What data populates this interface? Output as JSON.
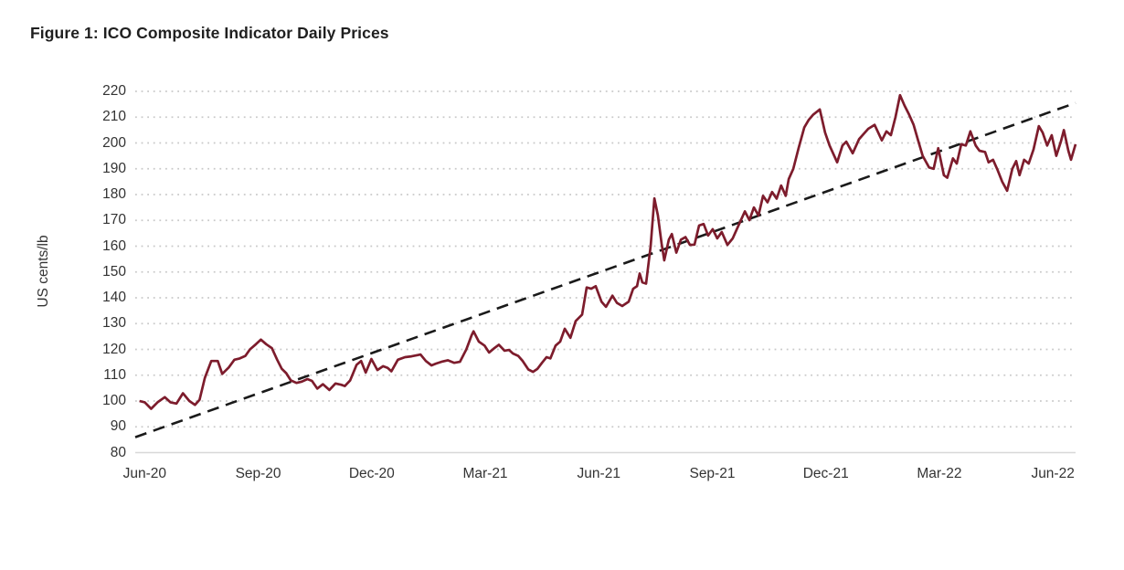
{
  "figure": {
    "title": "Figure 1: ICO Composite Indicator Daily Prices"
  },
  "chart_data": {
    "type": "line",
    "title": "Figure 1: ICO Composite Indicator Daily Prices",
    "xlabel": "",
    "ylabel": "US cents/lb",
    "ylim": [
      80,
      220
    ],
    "y_ticks": [
      80,
      90,
      100,
      110,
      120,
      130,
      140,
      150,
      160,
      170,
      180,
      190,
      200,
      210,
      220
    ],
    "xlim_months": [
      -0.25,
      24.6
    ],
    "x_ticks": {
      "values_months": [
        0,
        3,
        6,
        9,
        12,
        15,
        18,
        21,
        24
      ],
      "labels": [
        "Jun-20",
        "Sep-20",
        "Dec-20",
        "Mar-21",
        "Jun-21",
        "Sep-21",
        "Dec-21",
        "Mar-22",
        "Jun-22"
      ]
    },
    "grid": "horizontal-dotted",
    "legend_position": "none",
    "colors": {
      "price_line": "#7D1C2C",
      "trend_line": "#1A1A1A",
      "gridline": "#C9C9C9",
      "axis_line": "#D8D8D8",
      "text": "#333333",
      "title_text": "#1F1F1F"
    },
    "series": [
      {
        "name": "ICO composite indicator daily price",
        "style": "solid",
        "x_unit": "months since Jun-2020",
        "points": [
          [
            -0.14,
            100
          ],
          [
            0,
            99.5
          ],
          [
            0.17,
            97
          ],
          [
            0.34,
            99.5
          ],
          [
            0.53,
            101.5
          ],
          [
            0.68,
            99.5
          ],
          [
            0.84,
            99
          ],
          [
            1.01,
            103
          ],
          [
            1.18,
            100
          ],
          [
            1.33,
            98.5
          ],
          [
            1.45,
            100.5
          ],
          [
            1.59,
            109
          ],
          [
            1.76,
            115.5
          ],
          [
            1.93,
            115.5
          ],
          [
            2.05,
            110.5
          ],
          [
            2.22,
            113
          ],
          [
            2.37,
            116
          ],
          [
            2.51,
            116.5
          ],
          [
            2.66,
            117.5
          ],
          [
            2.78,
            120
          ],
          [
            2.94,
            122
          ],
          [
            3.07,
            123.8
          ],
          [
            3.21,
            122
          ],
          [
            3.36,
            120.5
          ],
          [
            3.5,
            116
          ],
          [
            3.62,
            112.5
          ],
          [
            3.74,
            110.8
          ],
          [
            3.86,
            108
          ],
          [
            4.01,
            107
          ],
          [
            4.15,
            107.5
          ],
          [
            4.3,
            108.5
          ],
          [
            4.42,
            107.8
          ],
          [
            4.56,
            104.8
          ],
          [
            4.71,
            106.5
          ],
          [
            4.88,
            104.3
          ],
          [
            5.04,
            106.8
          ],
          [
            5.19,
            106.3
          ],
          [
            5.29,
            105.8
          ],
          [
            5.43,
            108
          ],
          [
            5.6,
            114
          ],
          [
            5.72,
            115.5
          ],
          [
            5.84,
            111
          ],
          [
            5.99,
            116.3
          ],
          [
            6.15,
            112
          ],
          [
            6.3,
            113.5
          ],
          [
            6.42,
            112.8
          ],
          [
            6.52,
            111.5
          ],
          [
            6.69,
            116
          ],
          [
            6.88,
            117
          ],
          [
            7.05,
            117.3
          ],
          [
            7.22,
            117.8
          ],
          [
            7.29,
            118
          ],
          [
            7.43,
            115.5
          ],
          [
            7.58,
            113.8
          ],
          [
            7.7,
            114.5
          ],
          [
            7.84,
            115.2
          ],
          [
            8.01,
            115.8
          ],
          [
            8.18,
            114.8
          ],
          [
            8.33,
            115.2
          ],
          [
            8.5,
            120
          ],
          [
            8.64,
            125.5
          ],
          [
            8.69,
            127
          ],
          [
            8.83,
            123
          ],
          [
            8.98,
            121.5
          ],
          [
            9.1,
            118.8
          ],
          [
            9.24,
            120.5
          ],
          [
            9.36,
            121.8
          ],
          [
            9.51,
            119.5
          ],
          [
            9.63,
            119.8
          ],
          [
            9.73,
            118.4
          ],
          [
            9.87,
            117.5
          ],
          [
            9.99,
            115.5
          ],
          [
            10.14,
            112.2
          ],
          [
            10.26,
            111.3
          ],
          [
            10.38,
            112.5
          ],
          [
            10.5,
            114.8
          ],
          [
            10.62,
            117
          ],
          [
            10.72,
            116.5
          ],
          [
            10.86,
            121.5
          ],
          [
            10.98,
            123
          ],
          [
            11.1,
            128
          ],
          [
            11.25,
            124.5
          ],
          [
            11.39,
            131
          ],
          [
            11.56,
            133.5
          ],
          [
            11.68,
            144
          ],
          [
            11.8,
            143.5
          ],
          [
            11.92,
            144.5
          ],
          [
            12.07,
            138.5
          ],
          [
            12.19,
            136.5
          ],
          [
            12.36,
            140.8
          ],
          [
            12.48,
            138
          ],
          [
            12.62,
            136.8
          ],
          [
            12.79,
            138.5
          ],
          [
            12.91,
            143.5
          ],
          [
            13.01,
            144.5
          ],
          [
            13.08,
            149.4
          ],
          [
            13.15,
            146
          ],
          [
            13.25,
            145.5
          ],
          [
            13.37,
            160
          ],
          [
            13.47,
            178.5
          ],
          [
            13.56,
            172
          ],
          [
            13.66,
            161
          ],
          [
            13.73,
            154.5
          ],
          [
            13.85,
            162.5
          ],
          [
            13.93,
            164.7
          ],
          [
            14.05,
            157.5
          ],
          [
            14.17,
            162.5
          ],
          [
            14.29,
            163.5
          ],
          [
            14.41,
            160.5
          ],
          [
            14.53,
            160.6
          ],
          [
            14.65,
            168
          ],
          [
            14.77,
            168.6
          ],
          [
            14.89,
            164.1
          ],
          [
            15.01,
            166.6
          ],
          [
            15.13,
            163
          ],
          [
            15.25,
            165.5
          ],
          [
            15.4,
            160.5
          ],
          [
            15.54,
            163
          ],
          [
            15.69,
            168
          ],
          [
            15.86,
            173.5
          ],
          [
            15.98,
            170.1
          ],
          [
            16.1,
            175
          ],
          [
            16.22,
            171.9
          ],
          [
            16.34,
            179.5
          ],
          [
            16.46,
            177
          ],
          [
            16.58,
            181
          ],
          [
            16.7,
            178.4
          ],
          [
            16.82,
            183.5
          ],
          [
            16.94,
            179.5
          ],
          [
            17.02,
            186
          ],
          [
            17.14,
            190
          ],
          [
            17.28,
            198
          ],
          [
            17.43,
            206
          ],
          [
            17.55,
            209
          ],
          [
            17.67,
            211
          ],
          [
            17.84,
            213
          ],
          [
            17.98,
            204
          ],
          [
            18.1,
            199
          ],
          [
            18.3,
            192.5
          ],
          [
            18.44,
            199
          ],
          [
            18.54,
            200.5
          ],
          [
            18.71,
            196
          ],
          [
            18.88,
            201.5
          ],
          [
            19,
            203.5
          ],
          [
            19.12,
            205.5
          ],
          [
            19.29,
            207
          ],
          [
            19.48,
            201
          ],
          [
            19.6,
            204.5
          ],
          [
            19.72,
            203
          ],
          [
            19.84,
            210
          ],
          [
            19.96,
            218.5
          ],
          [
            20.08,
            214.5
          ],
          [
            20.2,
            211
          ],
          [
            20.32,
            207
          ],
          [
            20.44,
            201
          ],
          [
            20.56,
            195
          ],
          [
            20.73,
            190.5
          ],
          [
            20.85,
            190
          ],
          [
            20.97,
            198
          ],
          [
            21.12,
            187.5
          ],
          [
            21.21,
            186.5
          ],
          [
            21.36,
            194
          ],
          [
            21.46,
            192
          ],
          [
            21.58,
            199.5
          ],
          [
            21.7,
            199
          ],
          [
            21.82,
            204.5
          ],
          [
            21.96,
            199
          ],
          [
            22.06,
            197
          ],
          [
            22.21,
            196.5
          ],
          [
            22.3,
            192.5
          ],
          [
            22.42,
            193.5
          ],
          [
            22.54,
            189.5
          ],
          [
            22.66,
            185
          ],
          [
            22.79,
            181.5
          ],
          [
            22.93,
            190
          ],
          [
            23.03,
            193
          ],
          [
            23.12,
            187.5
          ],
          [
            23.24,
            193.5
          ],
          [
            23.36,
            192
          ],
          [
            23.49,
            197.5
          ],
          [
            23.63,
            206.5
          ],
          [
            23.73,
            204
          ],
          [
            23.85,
            199
          ],
          [
            23.97,
            203
          ],
          [
            24.09,
            195
          ],
          [
            24.21,
            200.5
          ],
          [
            24.29,
            205
          ],
          [
            24.41,
            197
          ],
          [
            24.48,
            193.5
          ],
          [
            24.6,
            199.5
          ]
        ]
      },
      {
        "name": "Linear trend",
        "style": "dashed",
        "x_unit": "months since Jun-2020",
        "points": [
          [
            -0.25,
            86
          ],
          [
            24.6,
            215.5
          ]
        ]
      }
    ]
  }
}
